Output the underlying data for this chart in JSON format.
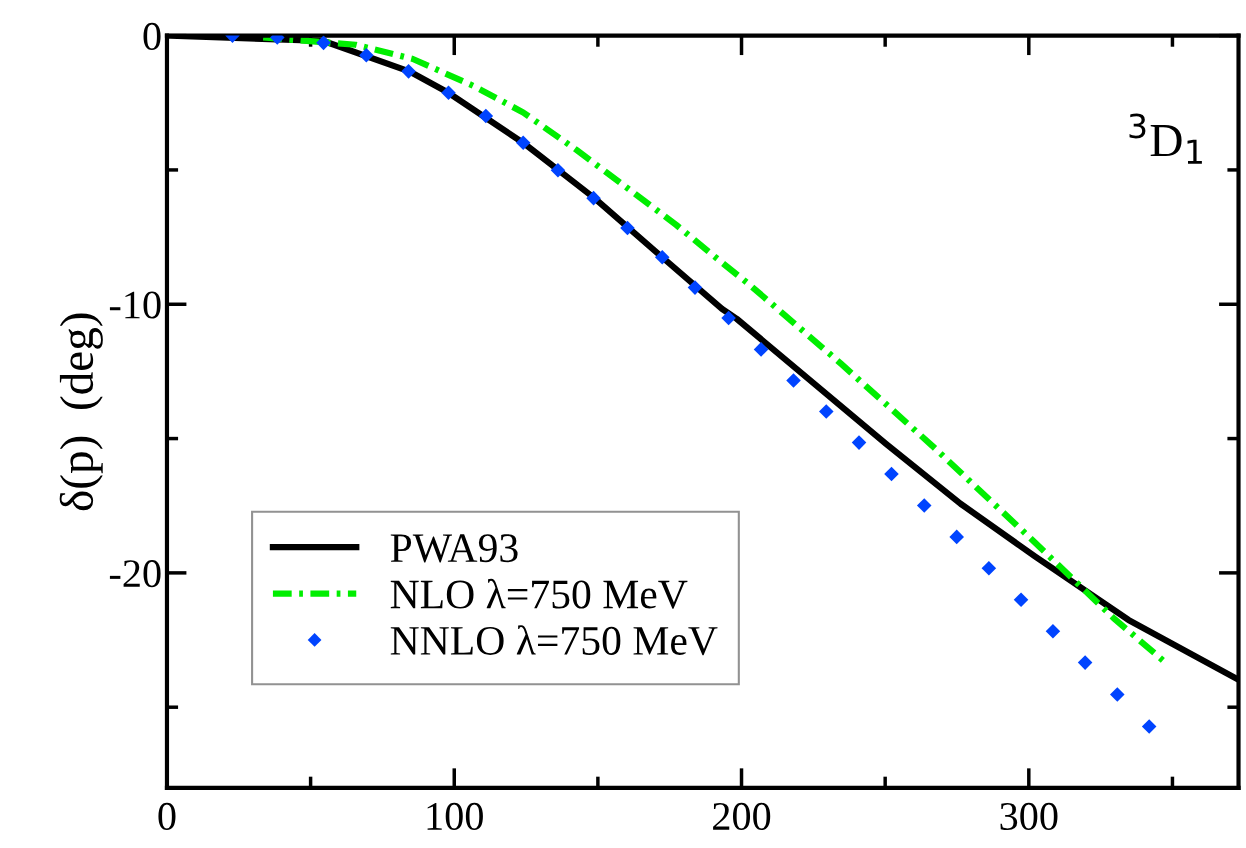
{
  "chart_data": {
    "type": "line",
    "ylabel": "δ(p)  (deg)",
    "annotations": [
      "$^{3}$D$_{1}$"
    ],
    "xlim": [
      0,
      373
    ],
    "ylim": [
      -28,
      0
    ],
    "xticks": [
      0,
      100,
      200,
      300
    ],
    "yticks": [
      0,
      -10,
      -20
    ],
    "grid": false,
    "legend": "bottom left",
    "series": [
      {
        "name": "PWA93",
        "color": "#000000",
        "line_style": "solid",
        "x": [
          0,
          1.2,
          54.5,
          84.3,
          98,
          124,
          148.8,
          172.4,
          193.2,
          198.3,
          250.3,
          276.3,
          302.2,
          334.7,
          373
        ],
        "values": [
          0,
          0,
          -0.2,
          -1.33,
          -2.13,
          -3.99,
          -6.05,
          -8.25,
          -10.17,
          -10.54,
          -15.2,
          -17.43,
          -19.39,
          -21.75,
          -23.98
        ]
      },
      {
        "name": "NLO λ=750 MeV",
        "color": "#00ee00",
        "line_style": "dashdot",
        "x": [
          33.5,
          65.7,
          85.6,
          106.6,
          124,
          142.6,
          160,
          177.3,
          193.2,
          202.2,
          234.7,
          266.5,
          298.3,
          329.5,
          347.7
        ],
        "values": [
          -0.07,
          -0.34,
          -0.87,
          -1.87,
          -2.86,
          -4.26,
          -5.65,
          -7.05,
          -8.45,
          -9.22,
          -12.22,
          -15.28,
          -18.48,
          -21.68,
          -23.35
        ]
      },
      {
        "name": "NNLO λ=750 MeV",
        "color": "#0044ff",
        "type": "scatter",
        "marker": "diamond",
        "x": [
          22.8,
          38.4,
          54.5,
          69.4,
          84.1,
          98.0,
          111.0,
          124.0,
          136.1,
          148.5,
          160.3,
          172.4,
          183.8,
          195.5,
          206.8,
          218.1,
          229.5,
          240.9,
          252.2,
          263.6,
          274.9,
          286.1,
          297.3,
          308.4,
          319.6,
          330.8,
          341.9
        ],
        "values": [
          0,
          -0.07,
          -0.27,
          -0.73,
          -1.33,
          -2.13,
          -2.99,
          -3.99,
          -5.01,
          -6.05,
          -7.16,
          -8.25,
          -9.38,
          -10.51,
          -11.68,
          -12.84,
          -13.99,
          -15.15,
          -16.32,
          -17.49,
          -18.66,
          -19.83,
          -21.0,
          -22.17,
          -23.34,
          -24.53,
          -25.72
        ]
      }
    ]
  }
}
